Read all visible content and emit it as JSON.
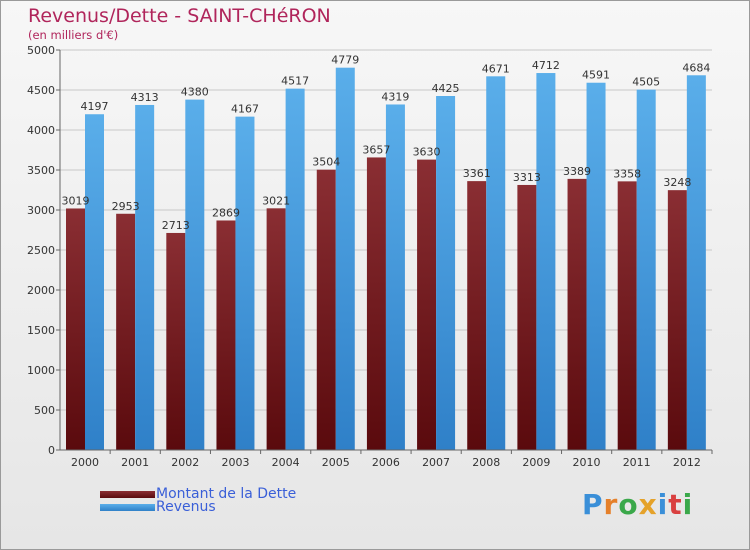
{
  "title": "Revenus/Dette - SAINT-CHéRON",
  "subtitle": "(en milliers d'€)",
  "logo_text": "Proxiti",
  "chart_data": {
    "type": "bar",
    "title": "Revenus/Dette - SAINT-CHéRON",
    "subtitle": "(en milliers d'€)",
    "categories": [
      "2000",
      "2001",
      "2002",
      "2003",
      "2004",
      "2005",
      "2006",
      "2007",
      "2008",
      "2009",
      "2010",
      "2011",
      "2012"
    ],
    "series": [
      {
        "name": "Montant de la Dette",
        "color": "#7a1f24",
        "values": [
          3019,
          2953,
          2713,
          2869,
          3021,
          3504,
          3657,
          3630,
          3361,
          3313,
          3389,
          3358,
          3248
        ]
      },
      {
        "name": "Revenus",
        "color": "#4d9fe0",
        "values": [
          4197,
          4313,
          4380,
          4167,
          4517,
          4779,
          4319,
          4425,
          4671,
          4712,
          4591,
          4505,
          4684
        ]
      }
    ],
    "ylim": [
      0,
      5000
    ],
    "yticks": [
      0,
      500,
      1000,
      1500,
      2000,
      2500,
      3000,
      3500,
      4000,
      4500,
      5000
    ],
    "grid": true,
    "legend": "bottom-left"
  }
}
